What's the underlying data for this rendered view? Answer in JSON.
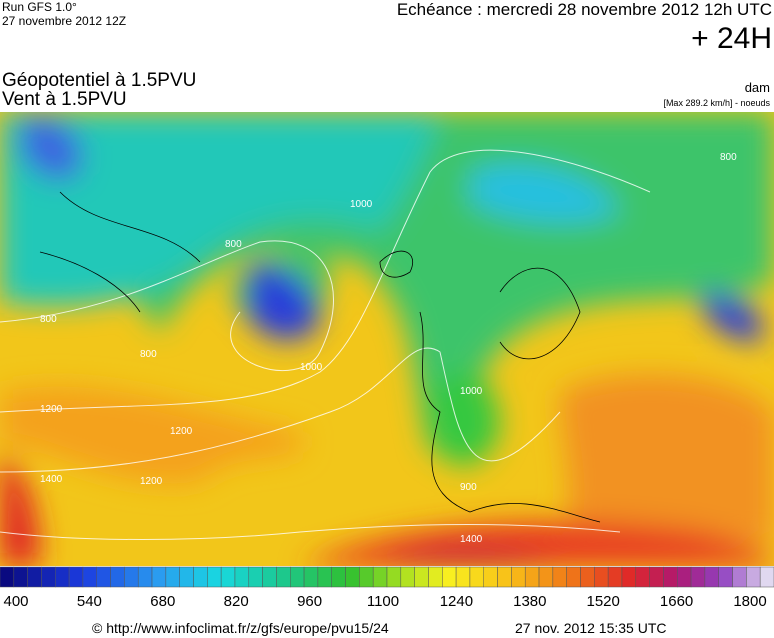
{
  "header": {
    "run": "Run GFS 1.0°",
    "run_date": "27 novembre 2012 12Z",
    "valid": "Echéance : mercredi 28 novembre 2012 12h UTC",
    "lead": "+ 24H",
    "title1": "Géopotentiel à 1.5PVU",
    "title2": "Vent à 1.5PVU",
    "unit": "dam",
    "wind_note": "[Max 289.2 km/h] - noeuds"
  },
  "map": {
    "contour_labels": [
      "800",
      "800",
      "800",
      "800",
      "1000",
      "1000",
      "1000",
      "1200",
      "1200",
      "1200",
      "1400",
      "1400",
      "900"
    ]
  },
  "colorbar": {
    "min": 400,
    "max": 1800,
    "labels": [
      "400",
      "540",
      "680",
      "820",
      "960",
      "1100",
      "1240",
      "1380",
      "1520",
      "1660",
      "1800"
    ]
  },
  "footer": {
    "source": "© http://www.infoclimat.fr/z/gfs/europe/pvu15/24",
    "generated": "27 nov. 2012 15:35 UTC"
  }
}
